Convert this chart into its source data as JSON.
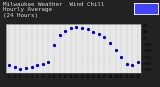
{
  "title": "Milwaukee Weather  Wind Chill\nHourly Average\n(24 Hours)",
  "bg_color": "#222222",
  "plot_bg_color": "#e8e8e8",
  "dot_color": "#0000cc",
  "legend_bg": "#4444ff",
  "legend_border": "#ffffff",
  "grid_color": "#aaaaaa",
  "hours": [
    0,
    1,
    2,
    3,
    4,
    5,
    6,
    7,
    8,
    9,
    10,
    11,
    12,
    13,
    14,
    15,
    16,
    17,
    18,
    19,
    20,
    21,
    22,
    23
  ],
  "values": [
    -42,
    -46,
    -48,
    -47,
    -45,
    -43,
    -41,
    -38,
    -10,
    5,
    12,
    16,
    18,
    17,
    14,
    10,
    6,
    2,
    -8,
    -18,
    -30,
    -40,
    -42,
    -38
  ],
  "ylim": [
    -55,
    22
  ],
  "yticks": [
    20,
    10,
    0,
    -10,
    -20,
    -30,
    -40,
    -50
  ],
  "title_fontsize": 4.2,
  "tick_fontsize": 3.2,
  "dot_size": 1.8
}
